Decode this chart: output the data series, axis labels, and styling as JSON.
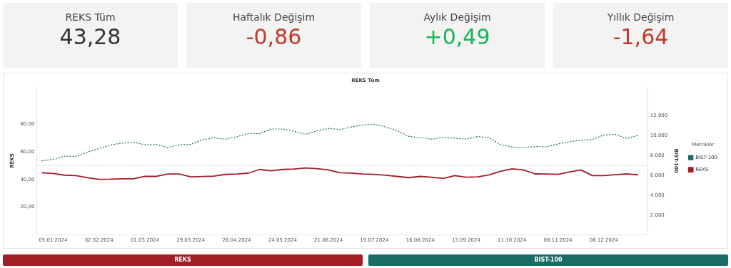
{
  "chart_data": [
    {
      "type": "other",
      "categories": [
        "REKS Tüm",
        "Haftalık Değişim",
        "Aylık Değişim",
        "Yıllık Değişim"
      ],
      "value_labels": [
        "43,28",
        "-0,86",
        "+0,49",
        "-1,64"
      ]
    },
    {
      "type": "line",
      "title": "REKS Tüm",
      "ylabel": "REKS",
      "y2label": "BIST-100",
      "legend_title": "Metrikler",
      "legend": "right",
      "x": [
        "2023-12-29",
        "2024-01-05",
        "2024-01-12",
        "2024-01-19",
        "2024-01-26",
        "2024-02-02",
        "2024-02-09",
        "2024-02-16",
        "2024-02-23",
        "2024-03-01",
        "2024-03-08",
        "2024-03-15",
        "2024-03-22",
        "2024-03-29",
        "2024-04-05",
        "2024-04-12",
        "2024-04-19",
        "2024-04-26",
        "2024-05-03",
        "2024-05-10",
        "2024-05-17",
        "2024-05-24",
        "2024-05-31",
        "2024-06-07",
        "2024-06-14",
        "2024-06-21",
        "2024-06-28",
        "2024-07-05",
        "2024-07-12",
        "2024-07-19",
        "2024-07-26",
        "2024-08-02",
        "2024-08-09",
        "2024-08-16",
        "2024-08-23",
        "2024-08-30",
        "2024-09-06",
        "2024-09-13",
        "2024-09-20",
        "2024-09-27",
        "2024-10-04",
        "2024-10-11",
        "2024-10-18",
        "2024-10-25",
        "2024-11-01",
        "2024-11-08",
        "2024-11-15",
        "2024-11-22",
        "2024-11-29",
        "2024-12-06",
        "2024-12-13",
        "2024-12-20",
        "2024-12-27"
      ],
      "xlim": [
        "2023-12-26",
        "2025-01-02"
      ],
      "xticks": [
        {
          "value": "2024-01-05",
          "label": "05.01.2024"
        },
        {
          "value": "2024-02-02",
          "label": "02.02.2024"
        },
        {
          "value": "2024-03-01",
          "label": "01.03.2024"
        },
        {
          "value": "2024-03-29",
          "label": "29.03.2024"
        },
        {
          "value": "2024-04-26",
          "label": "26.04.2024"
        },
        {
          "value": "2024-05-24",
          "label": "24.05.2024"
        },
        {
          "value": "2024-06-21",
          "label": "21.06.2024"
        },
        {
          "value": "2024-07-19",
          "label": "19.07.2024"
        },
        {
          "value": "2024-08-16",
          "label": "16.08.2024"
        },
        {
          "value": "2024-09-13",
          "label": "13.09.2024"
        },
        {
          "value": "2024-10-11",
          "label": "11.10.2024"
        },
        {
          "value": "2024-11-08",
          "label": "08.11.2024"
        },
        {
          "value": "2024-12-06",
          "label": "06.12.2024"
        }
      ],
      "ylim": [
        0,
        107
      ],
      "yticks": [
        {
          "value": 20,
          "label": "20,00"
        },
        {
          "value": 40,
          "label": "40,00"
        },
        {
          "value": 60,
          "label": "60,00"
        },
        {
          "value": 80,
          "label": "80,00"
        }
      ],
      "y2lim": [
        0,
        14920
      ],
      "y2ticks": [
        {
          "value": 2000,
          "label": "2.000"
        },
        {
          "value": 4000,
          "label": "4.000"
        },
        {
          "value": 6000,
          "label": "6.000"
        },
        {
          "value": 8000,
          "label": "8.000"
        },
        {
          "value": 10000,
          "label": "10.000"
        },
        {
          "value": 12000,
          "label": "12.000"
        }
      ],
      "ref_lines": [
        {
          "axis": "y",
          "value": 50,
          "color": "#cccccc",
          "line_style": "dotted"
        }
      ],
      "series": [
        {
          "name": "BIST-100",
          "color": "#1b6b66",
          "axis": "y2",
          "line_style": "dotted",
          "values": [
            7450,
            7600,
            7920,
            7900,
            8320,
            8680,
            9040,
            9230,
            9340,
            9060,
            9100,
            8790,
            9060,
            9100,
            9570,
            9760,
            9630,
            9860,
            10200,
            10180,
            10650,
            10650,
            10410,
            10120,
            10460,
            10710,
            10600,
            10860,
            11050,
            11110,
            10860,
            10480,
            9910,
            9780,
            9630,
            9800,
            9720,
            9630,
            9890,
            9780,
            9060,
            8850,
            8770,
            8890,
            8850,
            9150,
            9360,
            9530,
            9590,
            10050,
            10120,
            9700,
            10010
          ]
        },
        {
          "name": "REKS",
          "color": "#a31d24",
          "axis": "y",
          "line_style": "solid",
          "values": [
            44.8,
            44.3,
            43.1,
            42.8,
            41.2,
            40.1,
            40.2,
            40.5,
            40.5,
            42.2,
            42.2,
            43.9,
            43.9,
            41.9,
            42.1,
            42.4,
            43.6,
            43.9,
            44.5,
            47.2,
            46.2,
            47.2,
            47.5,
            48.3,
            47.8,
            46.9,
            44.8,
            44.6,
            43.9,
            43.7,
            43.0,
            42.2,
            41.3,
            42.2,
            41.6,
            40.7,
            42.8,
            41.6,
            41.9,
            43.3,
            45.9,
            47.7,
            46.9,
            44.0,
            43.9,
            43.7,
            45.4,
            46.9,
            42.8,
            42.8,
            43.4,
            44.0,
            43.3
          ]
        }
      ]
    },
    {
      "type": "other",
      "categories": [
        "REKS",
        "BIST-100"
      ],
      "colors": [
        "#a31d24",
        "#1b6b66"
      ]
    }
  ]
}
